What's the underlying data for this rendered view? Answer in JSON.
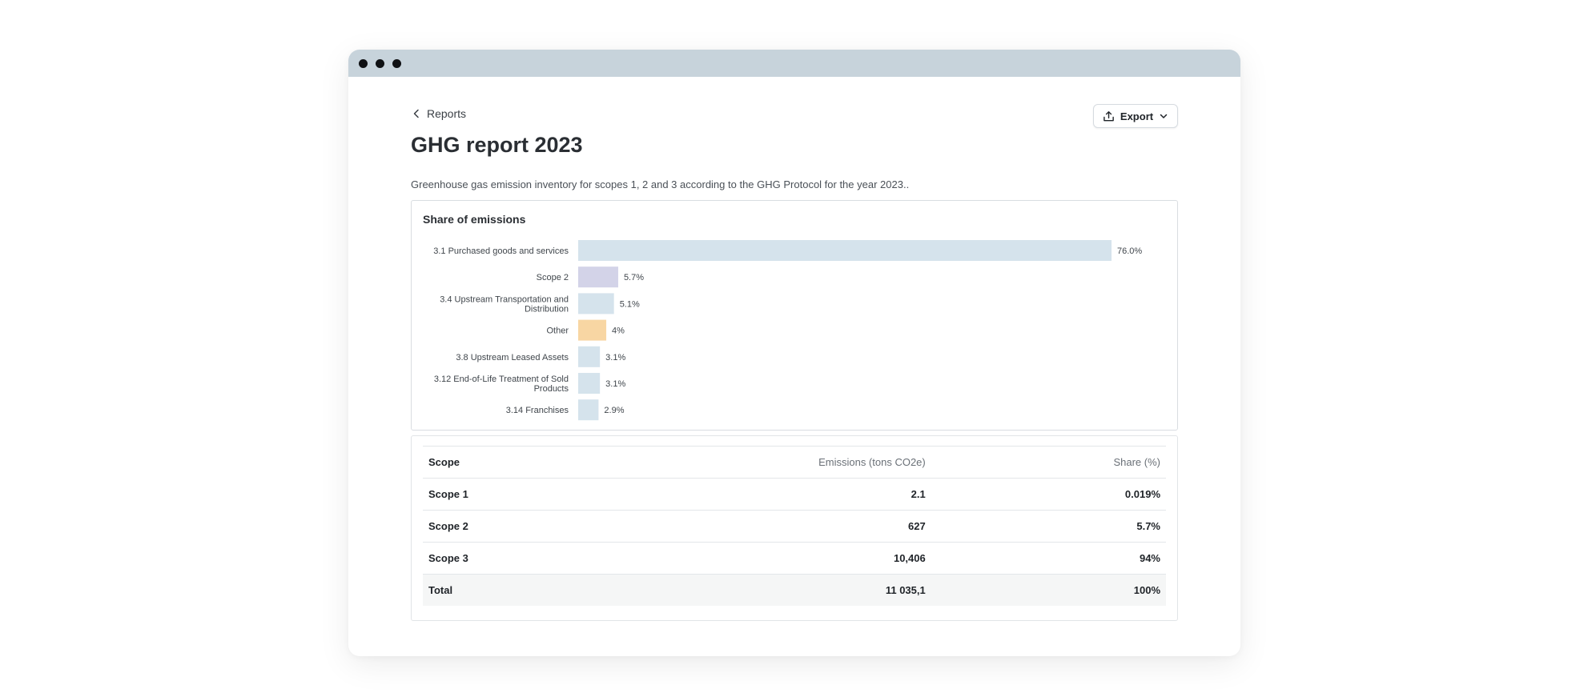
{
  "window": {
    "controls": [
      "close-dot",
      "minimize-dot",
      "maximize-dot"
    ]
  },
  "nav": {
    "back_label": "Reports"
  },
  "toolbar": {
    "export_label": "Export"
  },
  "page": {
    "title": "GHG report 2023",
    "subtitle": "Greenhouse gas emission inventory for scopes 1, 2 and 3 according to the GHG Protocol for the year 2023.."
  },
  "chart_title": "Share of emissions",
  "chart_data": {
    "type": "bar",
    "orientation": "horizontal",
    "title": "Share of emissions",
    "categories": [
      [
        "3.1 Purchased goods and services"
      ],
      [
        "Scope 2"
      ],
      [
        "3.4 Upstream Transportation and",
        "Distribution"
      ],
      [
        "Other"
      ],
      [
        "3.8  Upstream Leased Assets"
      ],
      [
        "3.12 End-of-Life Treatment of Sold",
        "Products"
      ],
      [
        "3.14 Franchises"
      ]
    ],
    "values": [
      76.0,
      5.7,
      5.1,
      4,
      3.1,
      3.1,
      2.9
    ],
    "value_labels": [
      "76.0%",
      "5.7%",
      "5.1%",
      "4%",
      "3.1%",
      "3.1%",
      "2.9%"
    ],
    "colors": [
      "#d5e3ec",
      "#d3d3e8",
      "#d5e3ec",
      "#f8d6a3",
      "#d5e3ec",
      "#d5e3ec",
      "#d5e3ec"
    ],
    "xlim": [
      0,
      76.0
    ],
    "grid": false,
    "legend": "none"
  },
  "table": {
    "headers": {
      "scope": "Scope",
      "emissions": "Emissions (tons CO2e)",
      "share": "Share (%)"
    },
    "rows": [
      {
        "scope": "Scope 1",
        "emissions": "2.1",
        "share": "0.019%"
      },
      {
        "scope": "Scope 2",
        "emissions": "627",
        "share": "5.7%"
      },
      {
        "scope": "Scope 3",
        "emissions": "10,406",
        "share": "94%"
      }
    ],
    "total": {
      "scope": "Total",
      "emissions": "11 035,1",
      "share": "100%"
    }
  },
  "icons": {
    "back": "chevron-left-icon",
    "export": "upload-icon",
    "dropdown": "chevron-down-icon"
  },
  "colors": {
    "titlebar": "#c7d3db",
    "bar_default": "#d5e3ec",
    "bar_scope2": "#d3d3e8",
    "bar_other": "#f8d6a3"
  }
}
